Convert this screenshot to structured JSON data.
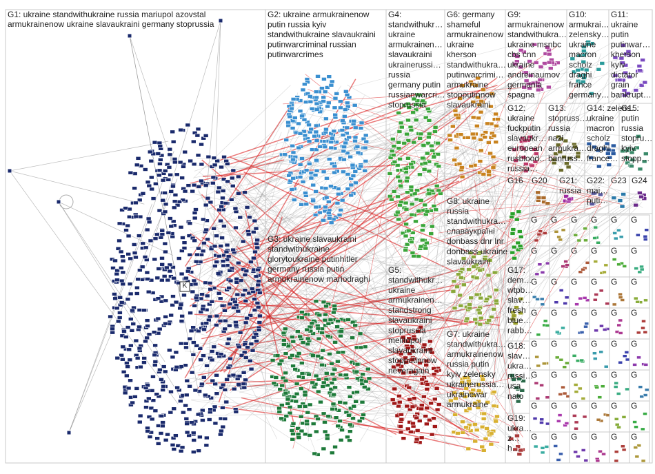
{
  "groups": [
    {
      "lines": [
        "G1: ukraine standwithukraine russia mariupol azovstal",
        "armukrainenow ukraine slavaukraini germany stoprussia"
      ],
      "color": "#1a2a6c"
    },
    {
      "lines": [
        "G2: ukraine armukrainenow",
        "putin russia kyiv",
        "standwithukraine slavaukraini",
        "putinwarcriminal russian",
        "putinwarcrimes"
      ],
      "color": "#3a8fd0"
    },
    {
      "lines": [
        "G3: ukraine slavaukraini",
        "standwithukraine",
        "glorytoukraine putinhitler",
        "germany russia putin",
        "armukrainenow mariodraghi"
      ],
      "color": "#1e7a3a"
    },
    {
      "lines": [
        "G4:",
        "standwithukr…",
        "ukraine",
        "armukrainen…",
        "slavaukraini",
        "ukrainerussi…",
        "russia",
        "germany putin",
        "russianwarcri…",
        "stoprussia"
      ],
      "color": "#3aa53a"
    },
    {
      "lines": [
        "G5:",
        "standwithukr…",
        "ukraine",
        "armukrainen…",
        "standstrong",
        "slavaukraini",
        "stoprussia",
        "melitopol",
        "slavaukraini",
        "stopputinnow",
        "neveragain"
      ],
      "color": "#a01818"
    },
    {
      "lines": [
        "G6: germany",
        "shameful",
        "armukrainenow",
        "ukraine",
        "kherson",
        "standwithukra…",
        "putinwarcrimi…",
        "armukraine",
        "stopputinnow",
        "slavaukraini"
      ],
      "color": "#c8821e"
    },
    {
      "lines": [
        "G7: ukraine",
        "standwithukra…",
        "armukrainenow",
        "russia putin",
        "kyiv zelensky",
        "ukrainerussia…",
        "ukrainewar",
        "armukraine"
      ],
      "color": "#d8b030"
    },
    {
      "lines": [
        "G8: ukraine",
        "russia",
        "standwithukra…",
        "славаукраїні",
        "donbass dnr lnr",
        "donbass ukraine",
        "slavaukraini"
      ],
      "color": "#8aa83a"
    },
    {
      "lines": [
        "G9:",
        "armukrainenow",
        "standwithukra…",
        "ukraine msnbc",
        "cbs cnn",
        "ukraine",
        "andreinaumov",
        "germania",
        "spagna"
      ],
      "color": "#b04aa0"
    },
    {
      "lines": [
        "G10:",
        "armukrai…",
        "zelensky…",
        "ukraine",
        "macron",
        "scholz",
        "draghi",
        "france",
        "germany…"
      ],
      "color": "#2a9a9a"
    },
    {
      "lines": [
        "G11:",
        "ukraine",
        "putin",
        "putinwar…",
        "kherson",
        "kyiv",
        "dictator",
        "grain",
        "bankrupt…"
      ],
      "color": "#7a4ac0"
    },
    {
      "lines": [
        "G12:",
        "ukraine",
        "fuckputin",
        "slavaukr…",
        "european",
        "rusblood…",
        "russia…"
      ],
      "color": "#c03a6a"
    },
    {
      "lines": [
        "G13:",
        "stopruss…",
        "russia",
        "nazi",
        "armukra…",
        "banruss…"
      ],
      "color": "#6a6a2a"
    },
    {
      "lines": [
        "G14: zelens…",
        "ukraine",
        "macron",
        "scholz",
        "draghi",
        "france…"
      ],
      "color": "#2a5aa0"
    },
    {
      "lines": [
        "G15:",
        "putin",
        "russia",
        "stopru…",
        "kyiv",
        "stopp…"
      ],
      "color": "#3a8a6a"
    },
    {
      "lines": [
        "G16"
      ],
      "color": "#2aa02a"
    },
    {
      "lines": [
        "G20"
      ],
      "color": "#aa6a2a"
    },
    {
      "lines": [
        "G21:",
        "russia"
      ],
      "color": "#a02aa0"
    },
    {
      "lines": [
        "G22:",
        "mai…",
        "puti…"
      ],
      "color": "#5a5aa0"
    },
    {
      "lines": [
        "G23"
      ],
      "color": "#2a7aaa"
    },
    {
      "lines": [
        "G24"
      ],
      "color": "#6a2a8a"
    },
    {
      "lines": [
        "G17:",
        "dem…",
        "wtpb…",
        "slav…",
        "fresh",
        "blue…",
        "rabb…"
      ],
      "color": "#9aa02a"
    },
    {
      "lines": [
        "G18:",
        "slav…",
        "ukra…",
        "russi…",
        "usa",
        "nato"
      ],
      "color": "#2a6a4a"
    },
    {
      "lines": [
        "G19:",
        "ukra…",
        "z…",
        "h…"
      ],
      "color": "#aa3a3a"
    }
  ],
  "center_node_label": "K",
  "minor_groups": [
    "G",
    "G",
    "G",
    "G",
    "G",
    "G",
    "G",
    "G",
    "G",
    "G",
    "G",
    "G",
    "G",
    "G",
    "G",
    "G",
    "G",
    "G",
    "G",
    "G",
    "G",
    "G",
    "G",
    "G",
    "G",
    "G",
    "G",
    "G",
    "G",
    "G",
    "G",
    "G",
    "G",
    "G",
    "G",
    "G",
    "G",
    "G",
    "G",
    "G",
    "G",
    "G",
    "G",
    "G",
    "G",
    "G",
    "G",
    "G"
  ]
}
